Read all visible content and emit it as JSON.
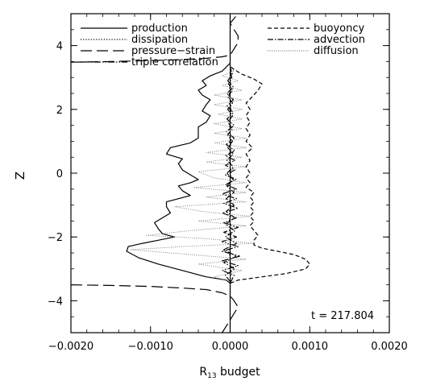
{
  "chart_data": {
    "type": "line",
    "title": "",
    "xlabel": "R",
    "xlabel_sub": "13",
    "xlabel_rest": " budget",
    "ylabel": "Z",
    "xlim": [
      -0.002,
      0.002
    ],
    "ylim": [
      -5,
      5
    ],
    "x_ticks": [
      -0.002,
      -0.001,
      0.0,
      0.001,
      0.002
    ],
    "x_tick_labels": [
      "−0.0020",
      "−0.0010",
      "0.0000",
      "0.0010",
      "0.0020"
    ],
    "y_ticks": [
      -4,
      -2,
      0,
      2,
      4
    ],
    "y_tick_labels": [
      "−4",
      "−2",
      "0",
      "2",
      "4"
    ],
    "grid": false,
    "annotation": "t = 217.804",
    "legend_left": [
      "production",
      "dissipation",
      "pressure−strain",
      "triple correlation"
    ],
    "legend_right": [
      "buoyoncy",
      "advection",
      "diffusion"
    ],
    "series": [
      {
        "name": "production",
        "dash": "solid",
        "color": "#000000",
        "points": [
          [
            0,
            -5
          ],
          [
            0,
            -3.5
          ],
          [
            0,
            -3.45
          ],
          [
            -5e-05,
            -3.35
          ],
          [
            -0.0003,
            -3.25
          ],
          [
            -0.0006,
            -3.05
          ],
          [
            -0.0009,
            -2.85
          ],
          [
            -0.00115,
            -2.65
          ],
          [
            -0.0013,
            -2.45
          ],
          [
            -0.00128,
            -2.3
          ],
          [
            -0.0011,
            -2.2
          ],
          [
            -0.0009,
            -2.1
          ],
          [
            -0.0007,
            -2.0
          ],
          [
            -0.00085,
            -1.9
          ],
          [
            -0.0009,
            -1.75
          ],
          [
            -0.00095,
            -1.55
          ],
          [
            -0.00085,
            -1.4
          ],
          [
            -0.00075,
            -1.25
          ],
          [
            -0.0008,
            -1.05
          ],
          [
            -0.0008,
            -0.9
          ],
          [
            -0.00065,
            -0.8
          ],
          [
            -0.0005,
            -0.7
          ],
          [
            -0.0006,
            -0.55
          ],
          [
            -0.00065,
            -0.4
          ],
          [
            -0.0005,
            -0.3
          ],
          [
            -0.0004,
            -0.2
          ],
          [
            -0.0005,
            -0.05
          ],
          [
            -0.0006,
            0.1
          ],
          [
            -0.00065,
            0.3
          ],
          [
            -0.0006,
            0.45
          ],
          [
            -0.0008,
            0.6
          ],
          [
            -0.00075,
            0.8
          ],
          [
            -0.0005,
            0.95
          ],
          [
            -0.0004,
            1.1
          ],
          [
            -0.0004,
            1.3
          ],
          [
            -0.0004,
            1.45
          ],
          [
            -0.0003,
            1.6
          ],
          [
            -0.00025,
            1.8
          ],
          [
            -0.00035,
            1.95
          ],
          [
            -0.0003,
            2.15
          ],
          [
            -0.00025,
            2.3
          ],
          [
            -0.00035,
            2.45
          ],
          [
            -0.0004,
            2.6
          ],
          [
            -0.0003,
            2.75
          ],
          [
            -0.00035,
            2.9
          ],
          [
            -0.00025,
            3.05
          ],
          [
            -0.0001,
            3.2
          ],
          [
            -2e-05,
            3.4
          ],
          [
            0,
            3.45
          ],
          [
            0,
            5
          ]
        ]
      },
      {
        "name": "dissipation",
        "dash": "dot",
        "color": "#000000",
        "points": [
          [
            0,
            -5
          ],
          [
            0,
            -3.5
          ],
          [
            1e-05,
            -3.0
          ],
          [
            -1e-05,
            -2.5
          ],
          [
            1e-05,
            -2.0
          ],
          [
            -1e-05,
            -1.5
          ],
          [
            1e-05,
            -1.0
          ],
          [
            -1e-05,
            -0.5
          ],
          [
            1e-05,
            0
          ],
          [
            -1e-05,
            0.5
          ],
          [
            1e-05,
            1.0
          ],
          [
            -1e-05,
            1.5
          ],
          [
            1e-05,
            2.0
          ],
          [
            -1e-05,
            2.5
          ],
          [
            1e-05,
            3.0
          ],
          [
            0,
            3.4
          ],
          [
            0,
            5
          ]
        ]
      },
      {
        "name": "pressure−strain",
        "dash": "longdash",
        "color": "#000000",
        "points": [
          [
            -0.002,
            3.48
          ],
          [
            -0.0015,
            3.5
          ],
          [
            -0.001,
            3.53
          ],
          [
            -0.0006,
            3.56
          ],
          [
            -0.0003,
            3.6
          ],
          [
            -0.0001,
            3.65
          ],
          [
            0,
            3.7
          ],
          [
            5e-05,
            3.9
          ],
          [
            0.0001,
            4.1
          ],
          [
            0.0001,
            4.3
          ],
          [
            5e-05,
            4.5
          ],
          [
            0,
            4.7
          ],
          [
            5e-05,
            4.85
          ],
          [
            0.0001,
            5.0
          ]
        ],
        "points2": [
          [
            -0.002,
            -3.5
          ],
          [
            -0.0015,
            -3.52
          ],
          [
            -0.001,
            -3.55
          ],
          [
            -0.0006,
            -3.6
          ],
          [
            -0.0003,
            -3.65
          ],
          [
            -0.0001,
            -3.75
          ],
          [
            0,
            -3.85
          ],
          [
            5e-05,
            -4.0
          ],
          [
            0.0001,
            -4.2
          ],
          [
            5e-05,
            -4.4
          ],
          [
            0,
            -4.6
          ],
          [
            -5e-05,
            -4.8
          ],
          [
            -0.0001,
            -5.0
          ]
        ]
      },
      {
        "name": "triple correlation",
        "dash": "dashdotdot",
        "color": "#000000",
        "points": [
          [
            0,
            -3.45
          ],
          [
            5e-05,
            -3.2
          ],
          [
            -0.0001,
            -3.05
          ],
          [
            0.0001,
            -2.9
          ],
          [
            -0.0001,
            -2.75
          ],
          [
            0.00012,
            -2.6
          ],
          [
            -0.0001,
            -2.45
          ],
          [
            0.0001,
            -2.3
          ],
          [
            -0.0001,
            -2.15
          ],
          [
            8e-05,
            -2.0
          ],
          [
            -8e-05,
            -1.85
          ],
          [
            0.0001,
            -1.7
          ],
          [
            -8e-05,
            -1.55
          ],
          [
            8e-05,
            -1.4
          ],
          [
            -0.0001,
            -1.25
          ],
          [
            0.0001,
            -1.1
          ],
          [
            -8e-05,
            -0.95
          ],
          [
            8e-05,
            -0.8
          ],
          [
            -0.0001,
            -0.65
          ],
          [
            8e-05,
            -0.5
          ],
          [
            -6e-05,
            -0.35
          ],
          [
            8e-05,
            -0.2
          ],
          [
            -6e-05,
            -0.05
          ],
          [
            6e-05,
            0.1
          ],
          [
            -6e-05,
            0.25
          ],
          [
            6e-05,
            0.4
          ],
          [
            -6e-05,
            0.55
          ],
          [
            6e-05,
            0.7
          ],
          [
            -5e-05,
            0.9
          ],
          [
            5e-05,
            1.1
          ],
          [
            -5e-05,
            1.3
          ],
          [
            5e-05,
            1.5
          ],
          [
            -4e-05,
            1.7
          ],
          [
            4e-05,
            1.9
          ],
          [
            -4e-05,
            2.1
          ],
          [
            4e-05,
            2.3
          ],
          [
            -4e-05,
            2.5
          ],
          [
            4e-05,
            2.7
          ],
          [
            -3e-05,
            2.9
          ],
          [
            3e-05,
            3.1
          ],
          [
            0,
            3.3
          ]
        ]
      },
      {
        "name": "buoyoncy",
        "dash": "shortdash",
        "color": "#000000",
        "points": [
          [
            0,
            -3.45
          ],
          [
            0.0001,
            -3.35
          ],
          [
            0.0004,
            -3.25
          ],
          [
            0.0007,
            -3.15
          ],
          [
            0.00095,
            -3.0
          ],
          [
            0.001,
            -2.85
          ],
          [
            0.00095,
            -2.7
          ],
          [
            0.0008,
            -2.55
          ],
          [
            0.0006,
            -2.45
          ],
          [
            0.0004,
            -2.35
          ],
          [
            0.0003,
            -2.25
          ],
          [
            0.0003,
            -2.1
          ],
          [
            0.00035,
            -1.95
          ],
          [
            0.0003,
            -1.8
          ],
          [
            0.00025,
            -1.65
          ],
          [
            0.0003,
            -1.5
          ],
          [
            0.00025,
            -1.35
          ],
          [
            0.0003,
            -1.2
          ],
          [
            0.00025,
            -1.05
          ],
          [
            0.0003,
            -0.9
          ],
          [
            0.00025,
            -0.75
          ],
          [
            0.0003,
            -0.6
          ],
          [
            0.0002,
            -0.45
          ],
          [
            0.00025,
            -0.3
          ],
          [
            0.0002,
            -0.15
          ],
          [
            0.00025,
            0
          ],
          [
            0.0002,
            0.2
          ],
          [
            0.00025,
            0.4
          ],
          [
            0.0002,
            0.6
          ],
          [
            0.00028,
            0.8
          ],
          [
            0.0002,
            1.0
          ],
          [
            0.00025,
            1.2
          ],
          [
            0.0002,
            1.4
          ],
          [
            0.00025,
            1.6
          ],
          [
            0.0002,
            1.8
          ],
          [
            0.00025,
            2.0
          ],
          [
            0.0002,
            2.2
          ],
          [
            0.00028,
            2.4
          ],
          [
            0.00035,
            2.6
          ],
          [
            0.0004,
            2.8
          ],
          [
            0.0003,
            2.95
          ],
          [
            0.00015,
            3.1
          ],
          [
            5e-05,
            3.25
          ],
          [
            0,
            3.35
          ]
        ]
      },
      {
        "name": "advection",
        "dash": "dashdot",
        "color": "#000000",
        "points": [
          [
            0,
            -3.4
          ],
          [
            -6e-05,
            -3.2
          ],
          [
            6e-05,
            -3.0
          ],
          [
            -8e-05,
            -2.8
          ],
          [
            8e-05,
            -2.6
          ],
          [
            -8e-05,
            -2.4
          ],
          [
            8e-05,
            -2.2
          ],
          [
            -6e-05,
            -2.0
          ],
          [
            6e-05,
            -1.8
          ],
          [
            -6e-05,
            -1.6
          ],
          [
            6e-05,
            -1.4
          ],
          [
            -5e-05,
            -1.2
          ],
          [
            5e-05,
            -1.0
          ],
          [
            -5e-05,
            -0.8
          ],
          [
            5e-05,
            -0.6
          ],
          [
            -4e-05,
            -0.4
          ],
          [
            4e-05,
            -0.2
          ],
          [
            -4e-05,
            0
          ],
          [
            4e-05,
            0.2
          ],
          [
            -4e-05,
            0.4
          ],
          [
            4e-05,
            0.6
          ],
          [
            -3e-05,
            0.8
          ],
          [
            3e-05,
            1.0
          ],
          [
            -3e-05,
            1.2
          ],
          [
            3e-05,
            1.4
          ],
          [
            -3e-05,
            1.6
          ],
          [
            3e-05,
            1.8
          ],
          [
            -3e-05,
            2.0
          ],
          [
            3e-05,
            2.2
          ],
          [
            -3e-05,
            2.4
          ],
          [
            3e-05,
            2.6
          ],
          [
            -2e-05,
            2.8
          ],
          [
            2e-05,
            3.0
          ],
          [
            0,
            3.3
          ]
        ]
      },
      {
        "name": "diffusion",
        "dash": "finedot",
        "color": "#808080",
        "points": [
          [
            0,
            -3.4
          ],
          [
            -0.0002,
            -3.25
          ],
          [
            0.00015,
            -3.05
          ],
          [
            -0.0004,
            -2.85
          ],
          [
            0.0002,
            -2.7
          ],
          [
            -0.0005,
            -2.55
          ],
          [
            -0.00125,
            -2.4
          ],
          [
            -0.0006,
            -2.3
          ],
          [
            0.0003,
            -2.2
          ],
          [
            -0.0003,
            -2.05
          ],
          [
            -0.00105,
            -1.95
          ],
          [
            -0.0005,
            -1.8
          ],
          [
            0.0002,
            -1.65
          ],
          [
            -0.0004,
            -1.5
          ],
          [
            0.00025,
            -1.35
          ],
          [
            -0.00035,
            -1.2
          ],
          [
            -0.0007,
            -1.05
          ],
          [
            0.0002,
            -0.9
          ],
          [
            -0.0003,
            -0.75
          ],
          [
            0.0002,
            -0.6
          ],
          [
            -0.00045,
            -0.45
          ],
          [
            0.0002,
            -0.3
          ],
          [
            -0.0002,
            -0.15
          ],
          [
            -0.0004,
            0.05
          ],
          [
            0.0002,
            0.2
          ],
          [
            -0.0003,
            0.35
          ],
          [
            0.00015,
            0.5
          ],
          [
            -0.0003,
            0.65
          ],
          [
            0.0002,
            0.8
          ],
          [
            -0.0002,
            0.95
          ],
          [
            0.0002,
            1.1
          ],
          [
            -0.0002,
            1.25
          ],
          [
            0.00015,
            1.4
          ],
          [
            -0.0002,
            1.55
          ],
          [
            0.00015,
            1.7
          ],
          [
            -0.00015,
            1.85
          ],
          [
            0.00015,
            2.0
          ],
          [
            -0.0002,
            2.15
          ],
          [
            0.00015,
            2.3
          ],
          [
            -0.0002,
            2.45
          ],
          [
            0.00015,
            2.6
          ],
          [
            -0.0001,
            2.75
          ],
          [
            0.0001,
            2.9
          ],
          [
            -0.0001,
            3.05
          ],
          [
            5e-05,
            3.2
          ],
          [
            0,
            3.3
          ]
        ]
      }
    ]
  }
}
